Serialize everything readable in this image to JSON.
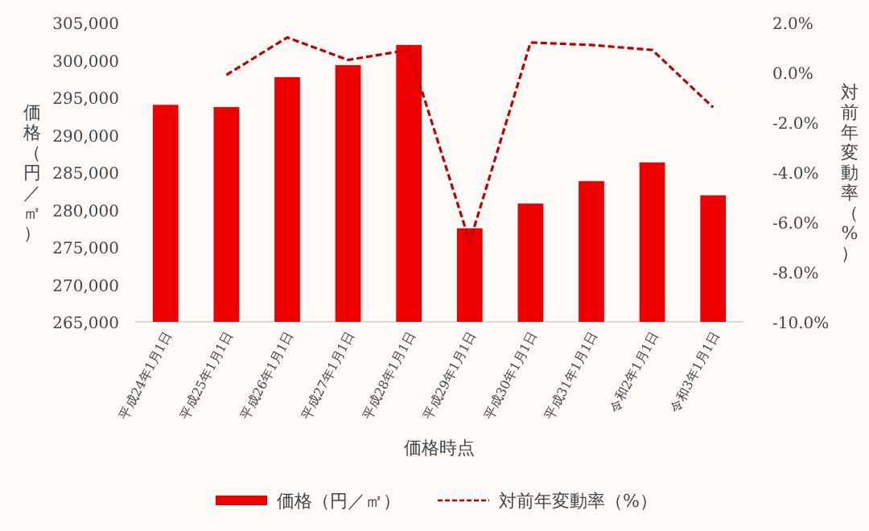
{
  "chart_data": {
    "type": "bar",
    "categories": [
      "平成24年1月1日",
      "平成25年1月1日",
      "平成26年1月1日",
      "平成27年1月1日",
      "平成28年1月1日",
      "平成29年1月1日",
      "平成30年1月1日",
      "平成31年1月1日",
      "令和2年1月1日",
      "令和3年1月1日"
    ],
    "series": [
      {
        "name": "価格（円／㎡）",
        "color": "#ee0000",
        "values": [
          294000,
          293700,
          297700,
          299300,
          302000,
          277500,
          280800,
          283800,
          286300,
          281900
        ]
      },
      {
        "name": "対前年変動率（%）",
        "type": "line",
        "axis": "y2",
        "line_style": "dashed",
        "color": "#c00000",
        "values": [
          null,
          -0.1,
          1.4,
          0.5,
          0.9,
          -6.8,
          1.2,
          1.1,
          0.9,
          -1.4
        ]
      }
    ],
    "xlabel": "価格時点",
    "ylabel": "価格（円／㎡）",
    "y2label": "対前年変動率（%）",
    "ylim": [
      265000,
      305000
    ],
    "yticks": [
      {
        "value": 265000,
        "label": "265,000"
      },
      {
        "value": 270000,
        "label": "270,000"
      },
      {
        "value": 275000,
        "label": "275,000"
      },
      {
        "value": 280000,
        "label": "280,000"
      },
      {
        "value": 285000,
        "label": "285,000"
      },
      {
        "value": 290000,
        "label": "290,000"
      },
      {
        "value": 295000,
        "label": "295,000"
      },
      {
        "value": 300000,
        "label": "300,000"
      },
      {
        "value": 305000,
        "label": "305,000"
      }
    ],
    "y2lim": [
      -10,
      2
    ],
    "y2ticks": [
      {
        "value": -10,
        "label": "-10.0%"
      },
      {
        "value": -8,
        "label": "-8.0%"
      },
      {
        "value": -6,
        "label": "-6.0%"
      },
      {
        "value": -4,
        "label": "-4.0%"
      },
      {
        "value": -2,
        "label": "-2.0%"
      },
      {
        "value": 0,
        "label": "0.0%"
      },
      {
        "value": 2,
        "label": "2.0%"
      }
    ],
    "legend": "bottom"
  }
}
